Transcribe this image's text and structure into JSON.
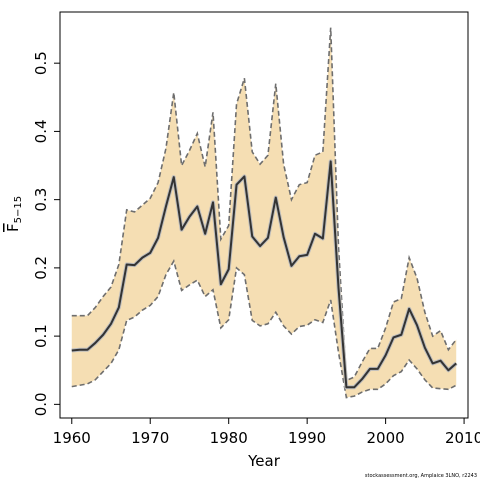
{
  "chart_data": {
    "type": "line",
    "title": "",
    "xlabel": "Year",
    "ylabel_main": "F",
    "ylabel_sub": "5−15",
    "xlim": [
      1958.5,
      2010.5
    ],
    "ylim": [
      -0.02,
      0.575
    ],
    "x_ticks": [
      1960,
      1970,
      1980,
      1990,
      2000,
      2010
    ],
    "x_tick_labels": [
      "1960",
      "1970",
      "1980",
      "1990",
      "2000",
      "2010"
    ],
    "y_ticks": [
      0.0,
      0.1,
      0.2,
      0.3,
      0.4,
      0.5
    ],
    "y_tick_labels": [
      "0.0",
      "0.1",
      "0.2",
      "0.3",
      "0.4",
      "0.5"
    ],
    "grid": false,
    "band_color": "#f5deb3",
    "band_edge_color": "#6e6e6e",
    "line_color": "#333333",
    "series": [
      {
        "x": [
          1960,
          1961,
          1962,
          1963,
          1964,
          1965,
          1966,
          1967,
          1968,
          1969,
          1970,
          1971,
          1972,
          1973,
          1974,
          1975,
          1976,
          1977,
          1978,
          1979,
          1980,
          1981,
          1982,
          1983,
          1984,
          1985,
          1986,
          1987,
          1988,
          1989,
          1990,
          1991,
          1992,
          1993,
          1994,
          1995,
          1996,
          1997,
          1998,
          1999,
          2000,
          2001,
          2002,
          2003,
          2004,
          2005,
          2006,
          2007,
          2008,
          2009
        ],
        "values": [
          0.079,
          0.08,
          0.08,
          0.09,
          0.102,
          0.118,
          0.142,
          0.205,
          0.204,
          0.215,
          0.222,
          0.244,
          0.29,
          0.333,
          0.256,
          0.275,
          0.29,
          0.25,
          0.296,
          0.176,
          0.198,
          0.322,
          0.334,
          0.246,
          0.232,
          0.244,
          0.303,
          0.245,
          0.203,
          0.217,
          0.219,
          0.25,
          0.243,
          0.356,
          0.17,
          0.025,
          0.025,
          0.037,
          0.052,
          0.052,
          0.072,
          0.098,
          0.102,
          0.14,
          0.116,
          0.083,
          0.06,
          0.064,
          0.05,
          0.06
        ],
        "lower": [
          0.026,
          0.028,
          0.03,
          0.036,
          0.048,
          0.06,
          0.08,
          0.123,
          0.128,
          0.138,
          0.145,
          0.158,
          0.19,
          0.21,
          0.167,
          0.175,
          0.182,
          0.158,
          0.168,
          0.112,
          0.124,
          0.2,
          0.19,
          0.123,
          0.115,
          0.118,
          0.135,
          0.115,
          0.103,
          0.114,
          0.116,
          0.124,
          0.12,
          0.153,
          0.076,
          0.01,
          0.012,
          0.018,
          0.022,
          0.022,
          0.03,
          0.042,
          0.048,
          0.065,
          0.052,
          0.036,
          0.024,
          0.023,
          0.022,
          0.028
        ],
        "upper": [
          0.13,
          0.13,
          0.13,
          0.142,
          0.158,
          0.172,
          0.205,
          0.285,
          0.282,
          0.292,
          0.302,
          0.325,
          0.375,
          0.457,
          0.35,
          0.372,
          0.397,
          0.348,
          0.428,
          0.242,
          0.262,
          0.44,
          0.478,
          0.37,
          0.352,
          0.365,
          0.47,
          0.352,
          0.3,
          0.322,
          0.325,
          0.365,
          0.37,
          0.552,
          0.23,
          0.035,
          0.04,
          0.062,
          0.082,
          0.082,
          0.112,
          0.15,
          0.155,
          0.215,
          0.185,
          0.135,
          0.1,
          0.108,
          0.08,
          0.095
        ]
      }
    ]
  },
  "footer": {
    "credit": "stockassessment.org, Amplaice 3LNO, r2243"
  }
}
